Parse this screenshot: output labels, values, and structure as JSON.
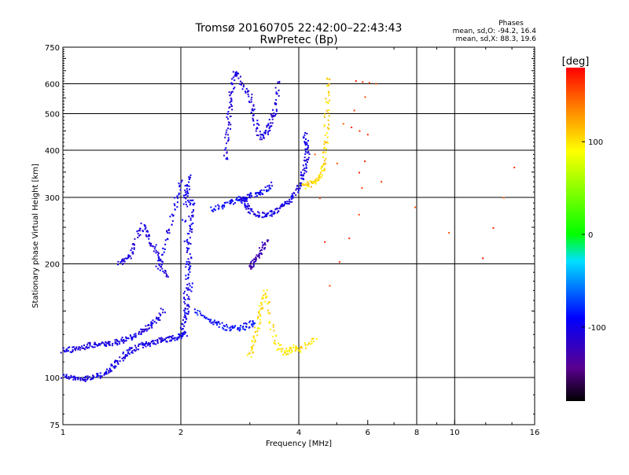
{
  "chart_data": {
    "type": "scatter",
    "title": "Tromsø 20160705 22:42:00–22:43:43",
    "subtitle": "RwPretec (Bp)",
    "xlabel": "Frequency [MHz]",
    "ylabel": "Stationary phase Virtual Height [km]",
    "x_scale": "log",
    "y_scale": "log",
    "xlim": [
      1,
      16
    ],
    "ylim": [
      75,
      750
    ],
    "x_ticks": [
      1,
      2,
      4,
      6,
      8,
      10,
      16
    ],
    "x_tick_labels": [
      "1",
      "2",
      "4",
      "6",
      "8",
      "10",
      "16"
    ],
    "y_ticks": [
      75,
      100,
      200,
      300,
      400,
      500,
      600,
      750
    ],
    "y_tick_labels": [
      "75",
      "100",
      "200",
      "300",
      "400",
      "500",
      "600",
      "750"
    ],
    "x_grid": [
      2,
      4,
      8,
      10
    ],
    "y_grid": [
      100,
      200,
      300,
      400,
      500,
      600
    ],
    "grid": true,
    "stats": {
      "header": "Phases",
      "line_o": "mean, sd,O: -94.2, 16.4",
      "line_x": "mean, sd,X:  88.3, 19.6"
    },
    "colorbar": {
      "label": "[deg]",
      "range": [
        -180,
        180
      ],
      "ticks": [
        100,
        0,
        -100
      ],
      "tick_labels": [
        "100",
        "0",
        "-100"
      ]
    },
    "series": [
      {
        "trace": "lower-e-trace",
        "phase": -105,
        "x": [
          1.0,
          1.04,
          1.08,
          1.12,
          1.16,
          1.2,
          1.24,
          1.28,
          1.3,
          1.34,
          1.38,
          1.42,
          1.46,
          1.5,
          1.55,
          1.6,
          1.65,
          1.7,
          1.75,
          1.8,
          1.85,
          1.9,
          1.95,
          2.0,
          2.05
        ],
        "y": [
          101,
          100,
          99,
          99,
          100,
          100,
          101,
          102,
          104,
          107,
          110,
          113,
          116,
          118,
          120,
          122,
          123,
          124,
          125,
          126,
          126,
          127,
          128,
          129,
          130
        ]
      },
      {
        "trace": "upper-e-trace",
        "phase": -105,
        "x": [
          1.0,
          1.04,
          1.08,
          1.12,
          1.16,
          1.2,
          1.24,
          1.28,
          1.32,
          1.36,
          1.4,
          1.45,
          1.5,
          1.55,
          1.6,
          1.65,
          1.7,
          1.75,
          1.8
        ],
        "y": [
          118,
          118,
          119,
          120,
          121,
          122,
          122,
          123,
          123,
          124,
          125,
          126,
          128,
          130,
          133,
          136,
          140,
          144,
          150
        ]
      },
      {
        "trace": "es-rise",
        "phase": -110,
        "x": [
          1.4,
          1.44,
          1.48,
          1.52,
          1.56,
          1.6,
          1.64,
          1.68,
          1.72,
          1.76,
          1.8,
          1.84
        ],
        "y": [
          200,
          204,
          210,
          222,
          240,
          252,
          242,
          230,
          218,
          206,
          196,
          186
        ]
      },
      {
        "trace": "f-lower-column",
        "phase": -100,
        "x": [
          2.02,
          2.04,
          2.06,
          2.06,
          2.08,
          2.08,
          2.1,
          2.1,
          2.12,
          2.12,
          2.14,
          2.06,
          2.08,
          2.1,
          2.04,
          2.12,
          2.08,
          2.06
        ],
        "y": [
          130,
          140,
          150,
          165,
          180,
          195,
          210,
          230,
          250,
          270,
          290,
          300,
          320,
          340,
          260,
          175,
          155,
          145
        ]
      },
      {
        "trace": "f-lower-cusp",
        "phase": -90,
        "x": [
          2.2,
          2.3,
          2.4,
          2.5,
          2.6,
          2.7,
          2.8,
          2.9,
          3.0,
          3.1
        ],
        "y": [
          150,
          145,
          140,
          138,
          136,
          135,
          135,
          136,
          138,
          140
        ]
      },
      {
        "trace": "f-left-spur",
        "phase": -100,
        "x": [
          1.75,
          1.8,
          1.85,
          1.9,
          1.95,
          2.0
        ],
        "y": [
          195,
          215,
          240,
          265,
          295,
          330
        ]
      },
      {
        "trace": "f-mid-layer",
        "phase": -95,
        "x": [
          2.4,
          2.5,
          2.6,
          2.7,
          2.8,
          2.9,
          3.0,
          3.1,
          3.2,
          3.3,
          3.4
        ],
        "y": [
          280,
          283,
          288,
          292,
          296,
          300,
          303,
          306,
          310,
          316,
          324
        ]
      },
      {
        "trace": "f-main-cusp",
        "phase": -105,
        "x": [
          2.85,
          2.9,
          2.95,
          3.0,
          3.1,
          3.2,
          3.3,
          3.4,
          3.5,
          3.6,
          3.7,
          3.8,
          3.9,
          4.0,
          4.05,
          4.1,
          4.15,
          4.2,
          4.2,
          4.18,
          4.15
        ],
        "y": [
          300,
          292,
          284,
          278,
          272,
          270,
          270,
          272,
          276,
          282,
          288,
          296,
          305,
          318,
          330,
          345,
          360,
          380,
          400,
          420,
          440
        ]
      },
      {
        "trace": "f-upper-cluster",
        "phase": -110,
        "x": [
          2.75,
          2.8,
          2.9,
          3.0,
          3.05,
          3.1,
          3.15,
          3.2,
          3.3,
          3.35,
          3.4,
          3.45,
          3.5,
          3.55
        ],
        "y": [
          640,
          630,
          590,
          560,
          520,
          480,
          450,
          430,
          440,
          460,
          480,
          500,
          540,
          600
        ]
      },
      {
        "trace": "f-upper-spike",
        "phase": -110,
        "x": [
          2.6,
          2.62,
          2.64,
          2.66,
          2.68,
          2.7,
          2.72
        ],
        "y": [
          380,
          420,
          460,
          500,
          540,
          580,
          620
        ]
      },
      {
        "trace": "f-x-trace",
        "phase": 105,
        "x": [
          4.1,
          4.2,
          4.3,
          4.4,
          4.5,
          4.6,
          4.65,
          4.68,
          4.7,
          4.72,
          4.74,
          4.76
        ],
        "y": [
          320,
          322,
          326,
          330,
          338,
          350,
          370,
          400,
          440,
          490,
          550,
          620
        ]
      },
      {
        "trace": "es-x-cluster",
        "phase": 100,
        "x": [
          3.0,
          3.05,
          3.1,
          3.15,
          3.2,
          3.25,
          3.3,
          3.4,
          3.5,
          3.6,
          3.7,
          3.8,
          3.9,
          4.0,
          4.2,
          4.4
        ],
        "y": [
          115,
          120,
          130,
          140,
          150,
          160,
          168,
          140,
          125,
          118,
          116,
          118,
          120,
          118,
          122,
          126
        ]
      },
      {
        "trace": "es-purple",
        "phase": -130,
        "x": [
          3.0,
          3.05,
          3.1,
          3.15,
          3.2,
          3.25,
          3.3
        ],
        "y": [
          195,
          200,
          205,
          210,
          215,
          222,
          230
        ]
      },
      {
        "trace": "scattered-echoes",
        "phase": 160,
        "x": [
          5.6,
          6.3,
          5.2,
          6.0,
          5.7,
          4.8,
          4.4,
          6.5,
          11.8,
          14.2
        ],
        "y": [
          610,
          600,
          470,
          440,
          270,
          175,
          390,
          330,
          207,
          360
        ]
      }
    ]
  }
}
